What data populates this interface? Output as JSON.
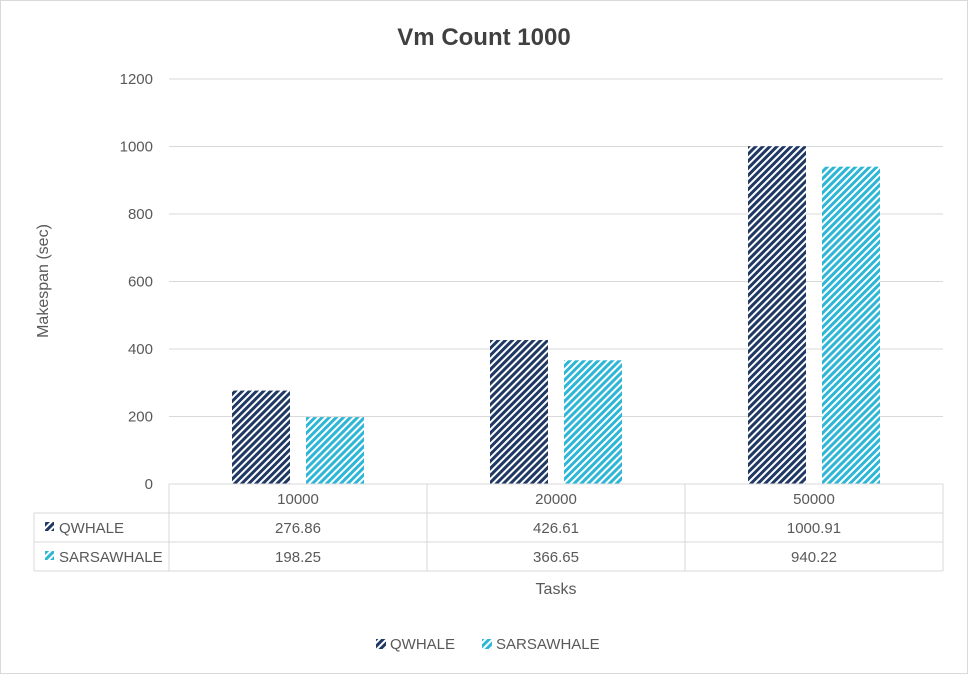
{
  "chart_data": {
    "type": "bar",
    "title": "Vm Count 1000",
    "xlabel": "Tasks",
    "ylabel": "Makespan (sec)",
    "categories": [
      "10000",
      "20000",
      "50000"
    ],
    "ylim": [
      0,
      1200
    ],
    "yticks": [
      0,
      200,
      400,
      600,
      800,
      1000,
      1200
    ],
    "grid": true,
    "legend_position": "bottom",
    "data_table": true,
    "series": [
      {
        "name": "QWHALE",
        "values": [
          276.86,
          426.61,
          1000.91
        ],
        "color": "#203864",
        "pattern": "diagonal-hatch"
      },
      {
        "name": "SARSAWHALE",
        "values": [
          198.25,
          366.65,
          940.22
        ],
        "color": "#2eb6d6",
        "pattern": "diagonal-hatch"
      }
    ]
  }
}
